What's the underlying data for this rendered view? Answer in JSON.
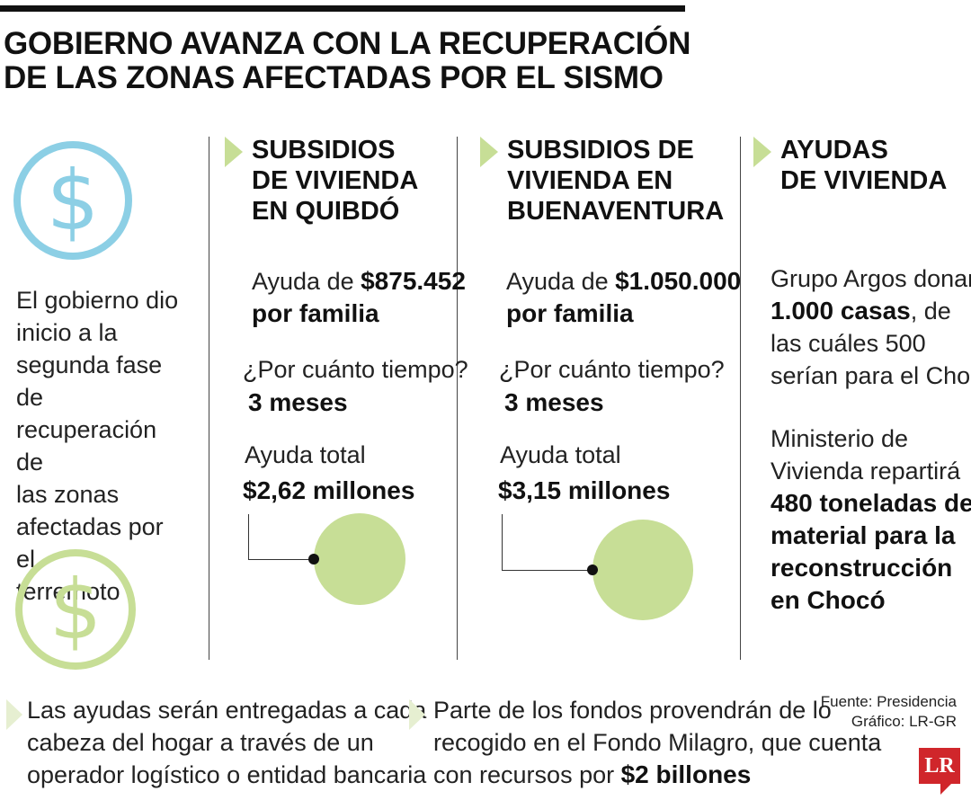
{
  "title": {
    "line1": "GOBIERNO AVANZA CON LA RECUPERACIÓN",
    "line2": "DE LAS ZONAS AFECTADAS POR EL SISMO"
  },
  "intro": {
    "l1": "El gobierno dio",
    "l2": "inicio a la",
    "l3": "segunda fase de",
    "l4": "recuperación de",
    "l5": "las zonas",
    "l6": "afectadas por el",
    "l7": "terremoto"
  },
  "quibdo": {
    "head1": "SUBSIDIOS",
    "head2": "DE VIVIENDA",
    "head3": "EN QUIBDÓ",
    "aid_prefix": "Ayuda de ",
    "aid_amount": "$875.452",
    "aid_suffix": "por familia",
    "time_q": "¿Por cuánto tiempo?",
    "time_a": "3 meses",
    "total_label": "Ayuda total",
    "total_value": "$2,62 millones"
  },
  "buenaventura": {
    "head1": "SUBSIDIOS DE",
    "head2": "VIVIENDA EN",
    "head3": "BUENAVENTURA",
    "aid_prefix": "Ayuda de ",
    "aid_amount": "$1.050.000",
    "aid_suffix": "por familia",
    "time_q": "¿Por cuánto tiempo?",
    "time_a": "3 meses",
    "total_label": "Ayuda total",
    "total_value": "$3,15 millones"
  },
  "ayudas": {
    "head1": "AYUDAS",
    "head2": "DE VIVIENDA",
    "argos_l1": "Grupo Argos donará",
    "argos_bold": "1.000 casas",
    "argos_l2_rest": ", de",
    "argos_l3": "las cuáles 500",
    "argos_l4": "serían para el Chocó",
    "min_l1": "Ministerio de",
    "min_l2": "Vivienda repartirá",
    "min_b1": "480 toneladas de",
    "min_b2": "material para la",
    "min_b3": "reconstrucción",
    "min_b4": "en Chocó"
  },
  "notes": {
    "left_l1": "Las ayudas serán entregadas a cada",
    "left_l2": "cabeza del hogar a través de un",
    "left_l3": "operador logístico o entidad bancaria",
    "right_l1": "Parte de los fondos provendrán de lo",
    "right_l2": "recogido en el Fondo Milagro, que cuenta",
    "right_l3_prefix": "con recursos por ",
    "right_l3_bold": "$2 billones"
  },
  "source": {
    "fuente": "Fuente: Presidencia",
    "grafico": "Gráfico: LR-GR",
    "logo": "LR"
  },
  "icons": {
    "coin_top": "dollar-coin-icon",
    "coin_bottom": "dollar-coin-icon",
    "coin_glyph": "$"
  },
  "colors": {
    "blue": "#8ccfe5",
    "green": "#c7de96",
    "brand_red": "#d0262b"
  },
  "chart_data": {
    "type": "bubble",
    "categories": [
      "Quibdó",
      "Buenaventura"
    ],
    "values": [
      2.62,
      3.15
    ],
    "value_labels": [
      "$2,62 millones",
      "$3,15 millones"
    ]
  }
}
